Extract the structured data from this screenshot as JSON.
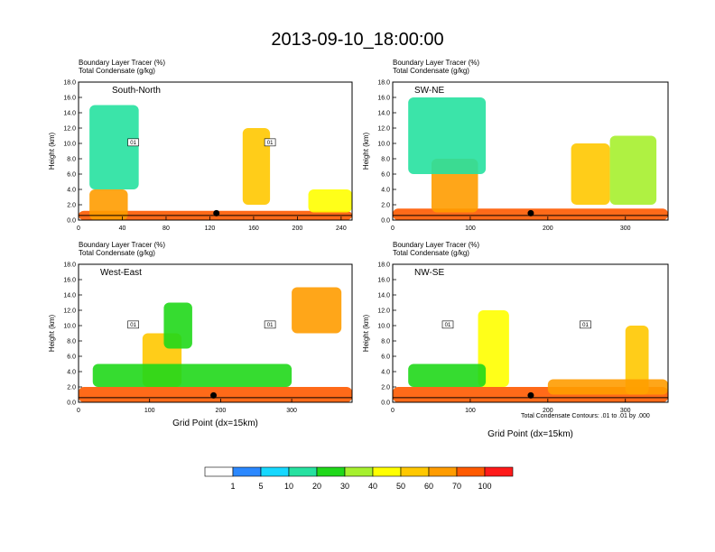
{
  "title": "2013-09-10_18:00:00",
  "colors": {
    "levels": [
      "#ffffff",
      "#2b88ff",
      "#16d8ff",
      "#26e1a0",
      "#20d81a",
      "#a6f02e",
      "#ffff00",
      "#ffc800",
      "#ff9c00",
      "#ff5a00",
      "#ff1a1a"
    ],
    "background": "#ffffff",
    "contour": "#000000"
  },
  "colorbar": {
    "labels": [
      "1",
      "5",
      "10",
      "20",
      "30",
      "40",
      "50",
      "60",
      "70",
      "100"
    ]
  },
  "footnote": "Total Condensate Contours: .01 to .01 by .000",
  "chart_data": [
    {
      "type": "heatmap",
      "subtitle_1": "Boundary Layer Tracer    (%)",
      "subtitle_2": "Total Condensate    (g/kg)",
      "section": "South-North",
      "ylabel": "Height (km)",
      "xlabel": "",
      "xlim": [
        0,
        250
      ],
      "ylim": [
        0,
        18
      ],
      "xticks": [
        "0",
        "40",
        "80",
        "120",
        "160",
        "200",
        "240"
      ],
      "xtick_values": [
        0,
        40,
        80,
        120,
        160,
        200,
        240
      ],
      "yticks": [
        "0.0",
        "2.0",
        "4.0",
        "6.0",
        "8.0",
        "10.0",
        "12.0",
        "14.0",
        "16.0",
        "18.0"
      ],
      "marker_x": 126,
      "contour_labels": [
        "01",
        "01"
      ],
      "blobs": [
        {
          "x": [
            0,
            250
          ],
          "y": [
            0,
            1.2
          ],
          "level": 9
        },
        {
          "x": [
            10,
            45
          ],
          "y": [
            0,
            4
          ],
          "level": 8
        },
        {
          "x": [
            150,
            175
          ],
          "y": [
            2,
            12
          ],
          "level": 7
        },
        {
          "x": [
            10,
            55
          ],
          "y": [
            4,
            15
          ],
          "level": 3
        },
        {
          "x": [
            210,
            250
          ],
          "y": [
            1,
            4
          ],
          "level": 6
        }
      ]
    },
    {
      "type": "heatmap",
      "subtitle_1": "Boundary Layer Tracer    (%)",
      "subtitle_2": "Total Condensate    (g/kg)",
      "section": "SW-NE",
      "ylabel": "Height (km)",
      "xlabel": "",
      "xlim": [
        0,
        355
      ],
      "ylim": [
        0,
        18
      ],
      "xticks": [
        "0",
        "100",
        "200",
        "300"
      ],
      "xtick_values": [
        0,
        100,
        200,
        300
      ],
      "yticks": [
        "0.0",
        "2.0",
        "4.0",
        "6.0",
        "8.0",
        "10.0",
        "12.0",
        "14.0",
        "16.0",
        "18.0"
      ],
      "marker_x": 178,
      "contour_labels": [],
      "blobs": [
        {
          "x": [
            0,
            355
          ],
          "y": [
            0,
            1.5
          ],
          "level": 9
        },
        {
          "x": [
            50,
            110
          ],
          "y": [
            1,
            8
          ],
          "level": 8
        },
        {
          "x": [
            230,
            280
          ],
          "y": [
            2,
            10
          ],
          "level": 7
        },
        {
          "x": [
            20,
            120
          ],
          "y": [
            6,
            16
          ],
          "level": 3
        },
        {
          "x": [
            280,
            340
          ],
          "y": [
            2,
            11
          ],
          "level": 5
        }
      ]
    },
    {
      "type": "heatmap",
      "subtitle_1": "Boundary Layer Tracer    (%)",
      "subtitle_2": "Total Condensate    (g/kg)",
      "section": "West-East",
      "ylabel": "Height (km)",
      "xlabel": "Grid Point (dx=15km)",
      "xlim": [
        0,
        385
      ],
      "ylim": [
        0,
        18
      ],
      "xticks": [
        "0",
        "100",
        "200",
        "300"
      ],
      "xtick_values": [
        0,
        100,
        200,
        300
      ],
      "yticks": [
        "0.0",
        "2.0",
        "4.0",
        "6.0",
        "8.0",
        "10.0",
        "12.0",
        "14.0",
        "16.0",
        "18.0"
      ],
      "marker_x": 190,
      "contour_labels": [
        "01",
        "01"
      ],
      "blobs": [
        {
          "x": [
            0,
            385
          ],
          "y": [
            0,
            2
          ],
          "level": 9
        },
        {
          "x": [
            90,
            145
          ],
          "y": [
            2,
            9
          ],
          "level": 7
        },
        {
          "x": [
            120,
            160
          ],
          "y": [
            7,
            13
          ],
          "level": 4
        },
        {
          "x": [
            300,
            370
          ],
          "y": [
            9,
            15
          ],
          "level": 8
        },
        {
          "x": [
            20,
            300
          ],
          "y": [
            2,
            5
          ],
          "level": 4
        }
      ]
    },
    {
      "type": "heatmap",
      "subtitle_1": "Boundary Layer Tracer    (%)",
      "subtitle_2": "Total Condensate    (g/kg)",
      "section": "NW-SE",
      "ylabel": "Height (km)",
      "xlabel": "Grid Point (dx=15km)",
      "xlim": [
        0,
        355
      ],
      "ylim": [
        0,
        18
      ],
      "xticks": [
        "0",
        "100",
        "200",
        "300"
      ],
      "xtick_values": [
        0,
        100,
        200,
        300
      ],
      "yticks": [
        "0.0",
        "2.0",
        "4.0",
        "6.0",
        "8.0",
        "10.0",
        "12.0",
        "14.0",
        "16.0",
        "18.0"
      ],
      "marker_x": 178,
      "contour_labels": [
        "01",
        "01"
      ],
      "blobs": [
        {
          "x": [
            0,
            355
          ],
          "y": [
            0,
            2
          ],
          "level": 9
        },
        {
          "x": [
            110,
            150
          ],
          "y": [
            2,
            12
          ],
          "level": 6
        },
        {
          "x": [
            20,
            120
          ],
          "y": [
            2,
            5
          ],
          "level": 4
        },
        {
          "x": [
            300,
            330
          ],
          "y": [
            1,
            10
          ],
          "level": 7
        },
        {
          "x": [
            200,
            355
          ],
          "y": [
            1,
            3
          ],
          "level": 8
        }
      ]
    }
  ]
}
